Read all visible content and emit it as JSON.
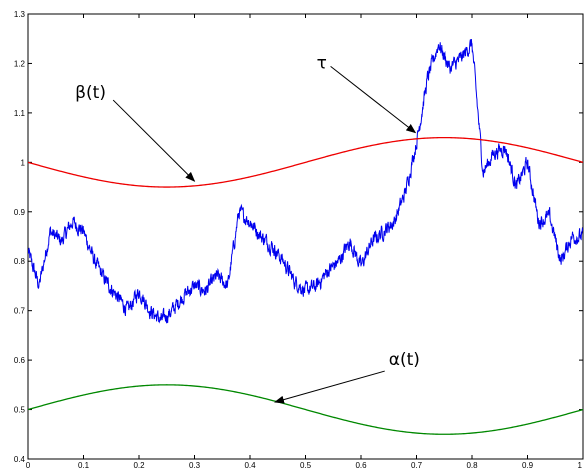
{
  "chart_data": {
    "type": "line",
    "title": "",
    "xlabel": "",
    "ylabel": "",
    "xlim": [
      0,
      1
    ],
    "ylim": [
      0.4,
      1.3
    ],
    "xticks": [
      "0",
      "0.1",
      "0.2",
      "0.3",
      "0.4",
      "0.5",
      "0.6",
      "0.7",
      "0.8",
      "0.9",
      "1"
    ],
    "yticks": [
      "0.4",
      "0.5",
      "0.6",
      "0.7",
      "0.8",
      "0.9",
      "1",
      "1.1",
      "1.2",
      "1.3"
    ],
    "grid": false,
    "series": [
      {
        "color": "#0000ee",
        "x": [
          0.0,
          0.02,
          0.04,
          0.06,
          0.08,
          0.1,
          0.12,
          0.14,
          0.16,
          0.18,
          0.2,
          0.22,
          0.24,
          0.26,
          0.28,
          0.3,
          0.32,
          0.34,
          0.36,
          0.38,
          0.4,
          0.42,
          0.44,
          0.46,
          0.48,
          0.5,
          0.52,
          0.54,
          0.56,
          0.58,
          0.6,
          0.62,
          0.64,
          0.66,
          0.68,
          0.7,
          0.72,
          0.74,
          0.76,
          0.78,
          0.8,
          0.82,
          0.84,
          0.86,
          0.88,
          0.9,
          0.92,
          0.94,
          0.96,
          0.98,
          1.0
        ],
        "y": [
          0.82,
          0.75,
          0.86,
          0.84,
          0.88,
          0.86,
          0.8,
          0.76,
          0.73,
          0.7,
          0.74,
          0.7,
          0.68,
          0.7,
          0.73,
          0.75,
          0.74,
          0.77,
          0.75,
          0.9,
          0.88,
          0.85,
          0.83,
          0.8,
          0.76,
          0.74,
          0.75,
          0.78,
          0.8,
          0.84,
          0.79,
          0.84,
          0.86,
          0.88,
          0.94,
          1.04,
          1.17,
          1.24,
          1.19,
          1.21,
          1.24,
          0.98,
          1.02,
          1.03,
          0.95,
          1.0,
          0.88,
          0.89,
          0.8,
          0.85,
          0.85
        ],
        "noise_amplitude": 0.012
      },
      {
        "name": "β(t)",
        "color": "#ee0000",
        "function": "1 - 0.05*sin(2*pi*t)"
      },
      {
        "name": "α(t)",
        "color": "#008800",
        "function": "0.5 + 0.05*sin(2*pi*t)"
      }
    ],
    "annotations": [
      {
        "text": "β(t)",
        "label_at": [
          0.085,
          1.13
        ],
        "arrow_to": [
          0.3,
          0.962
        ]
      },
      {
        "text": "τ",
        "label_at": [
          0.52,
          1.19
        ],
        "arrow_to": [
          0.698,
          1.06
        ]
      },
      {
        "text": "α(t)",
        "label_at": [
          0.65,
          0.59
        ],
        "arrow_to": [
          0.445,
          0.515
        ]
      }
    ]
  }
}
